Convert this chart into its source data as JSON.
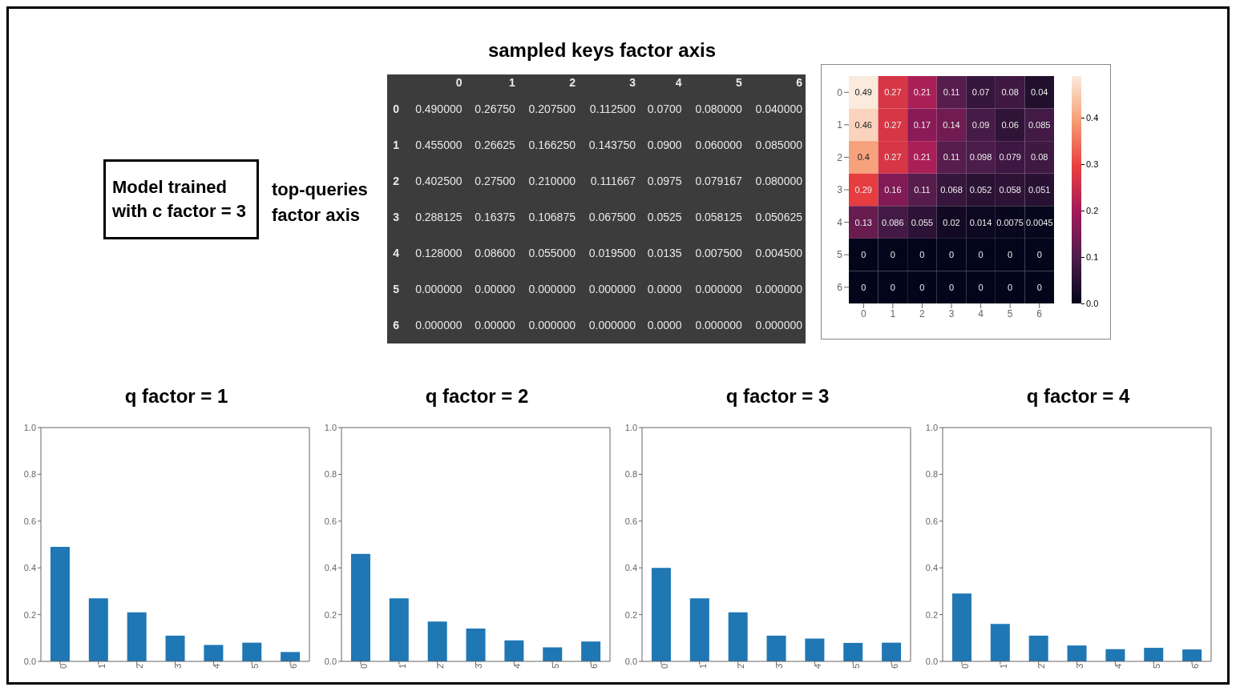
{
  "chart_data": [
    {
      "type": "heatmap",
      "title": "sampled keys factor axis",
      "ylabel": "top-queries factor axis",
      "annotations": [
        "Model trained with c factor = 3"
      ],
      "categories": [
        "0",
        "1",
        "2",
        "3",
        "4",
        "5",
        "6"
      ],
      "y_categories": [
        "0",
        "1",
        "2",
        "3",
        "4",
        "5",
        "6"
      ],
      "cells": [
        [
          0.49,
          0.2675,
          0.2075,
          0.1125,
          0.07,
          0.08,
          0.04
        ],
        [
          0.455,
          0.26625,
          0.16625,
          0.14375,
          0.09,
          0.06,
          0.085
        ],
        [
          0.4025,
          0.275,
          0.21,
          0.111667,
          0.0975,
          0.079167,
          0.08
        ],
        [
          0.288125,
          0.16375,
          0.106875,
          0.0675,
          0.0525,
          0.058125,
          0.050625
        ],
        [
          0.128,
          0.086,
          0.055,
          0.0195,
          0.0135,
          0.0075,
          0.0045
        ],
        [
          0,
          0,
          0,
          0,
          0,
          0,
          0
        ],
        [
          0,
          0,
          0,
          0,
          0,
          0,
          0
        ]
      ],
      "cell_labels": [
        [
          "0.490000",
          "0.26750",
          "0.207500",
          "0.112500",
          "0.0700",
          "0.080000",
          "0.040000"
        ],
        [
          "0.455000",
          "0.26625",
          "0.166250",
          "0.143750",
          "0.0900",
          "0.060000",
          "0.085000"
        ],
        [
          "0.402500",
          "0.27500",
          "0.210000",
          "0.111667",
          "0.0975",
          "0.079167",
          "0.080000"
        ],
        [
          "0.288125",
          "0.16375",
          "0.106875",
          "0.067500",
          "0.0525",
          "0.058125",
          "0.050625"
        ],
        [
          "0.128000",
          "0.08600",
          "0.055000",
          "0.019500",
          "0.0135",
          "0.007500",
          "0.004500"
        ],
        [
          "0.000000",
          "0.00000",
          "0.000000",
          "0.000000",
          "0.0000",
          "0.000000",
          "0.000000"
        ],
        [
          "0.000000",
          "0.00000",
          "0.000000",
          "0.000000",
          "0.0000",
          "0.000000",
          "0.000000"
        ]
      ]
    },
    {
      "type": "heatmap",
      "categories": [
        "0",
        "1",
        "2",
        "3",
        "4",
        "5",
        "6"
      ],
      "y_categories": [
        "0",
        "1",
        "2",
        "3",
        "4",
        "5",
        "6"
      ],
      "cells": [
        [
          0.49,
          0.27,
          0.21,
          0.11,
          0.07,
          0.08,
          0.04
        ],
        [
          0.46,
          0.27,
          0.17,
          0.14,
          0.09,
          0.06,
          0.085
        ],
        [
          0.4,
          0.27,
          0.21,
          0.11,
          0.098,
          0.079,
          0.08
        ],
        [
          0.29,
          0.16,
          0.11,
          0.068,
          0.052,
          0.058,
          0.051
        ],
        [
          0.13,
          0.086,
          0.055,
          0.02,
          0.014,
          0.0075,
          0.0045
        ],
        [
          0,
          0,
          0,
          0,
          0,
          0,
          0
        ],
        [
          0,
          0,
          0,
          0,
          0,
          0,
          0
        ]
      ],
      "data_labels": true,
      "clim": [
        0,
        0.49
      ],
      "cticks": [
        {
          "value": 0,
          "label": "0.0"
        },
        {
          "value": 0.1,
          "label": "0.1"
        },
        {
          "value": 0.2,
          "label": "0.2"
        },
        {
          "value": 0.3,
          "label": "0.3"
        },
        {
          "value": 0.4,
          "label": "0.4"
        }
      ]
    },
    {
      "type": "bar",
      "title": "q factor = 1",
      "categories": [
        "0",
        "1",
        "2",
        "3",
        "4",
        "5",
        "6"
      ],
      "values": [
        0.49,
        0.27,
        0.21,
        0.11,
        0.07,
        0.08,
        0.04
      ],
      "color": "#1f77b4",
      "ylim": [
        0,
        1
      ],
      "yticks": [
        {
          "value": 0,
          "label": "0.0"
        },
        {
          "value": 0.2,
          "label": "0.2"
        },
        {
          "value": 0.4,
          "label": "0.4"
        },
        {
          "value": 0.6,
          "label": "0.6"
        },
        {
          "value": 0.8,
          "label": "0.8"
        },
        {
          "value": 1,
          "label": "1.0"
        }
      ]
    },
    {
      "type": "bar",
      "title": "q factor = 2",
      "categories": [
        "0",
        "1",
        "2",
        "3",
        "4",
        "5",
        "6"
      ],
      "values": [
        0.46,
        0.27,
        0.17,
        0.14,
        0.09,
        0.06,
        0.085
      ],
      "color": "#1f77b4",
      "ylim": [
        0,
        1
      ],
      "yticks": [
        {
          "value": 0,
          "label": "0.0"
        },
        {
          "value": 0.2,
          "label": "0.2"
        },
        {
          "value": 0.4,
          "label": "0.4"
        },
        {
          "value": 0.6,
          "label": "0.6"
        },
        {
          "value": 0.8,
          "label": "0.8"
        },
        {
          "value": 1,
          "label": "1.0"
        }
      ]
    },
    {
      "type": "bar",
      "title": "q factor = 3",
      "categories": [
        "0",
        "1",
        "2",
        "3",
        "4",
        "5",
        "6"
      ],
      "values": [
        0.4,
        0.27,
        0.21,
        0.11,
        0.098,
        0.079,
        0.08
      ],
      "color": "#1f77b4",
      "ylim": [
        0,
        1
      ],
      "yticks": [
        {
          "value": 0,
          "label": "0.0"
        },
        {
          "value": 0.2,
          "label": "0.2"
        },
        {
          "value": 0.4,
          "label": "0.4"
        },
        {
          "value": 0.6,
          "label": "0.6"
        },
        {
          "value": 0.8,
          "label": "0.8"
        },
        {
          "value": 1,
          "label": "1.0"
        }
      ]
    },
    {
      "type": "bar",
      "title": "q factor =  4",
      "categories": [
        "0",
        "1",
        "2",
        "3",
        "4",
        "5",
        "6"
      ],
      "values": [
        0.29,
        0.16,
        0.11,
        0.068,
        0.052,
        0.058,
        0.051
      ],
      "color": "#1f77b4",
      "ylim": [
        0,
        1
      ],
      "yticks": [
        {
          "value": 0,
          "label": "0.0"
        },
        {
          "value": 0.2,
          "label": "0.2"
        },
        {
          "value": 0.4,
          "label": "0.4"
        },
        {
          "value": 0.6,
          "label": "0.6"
        },
        {
          "value": 0.8,
          "label": "0.8"
        },
        {
          "value": 1,
          "label": "1.0"
        }
      ]
    }
  ]
}
